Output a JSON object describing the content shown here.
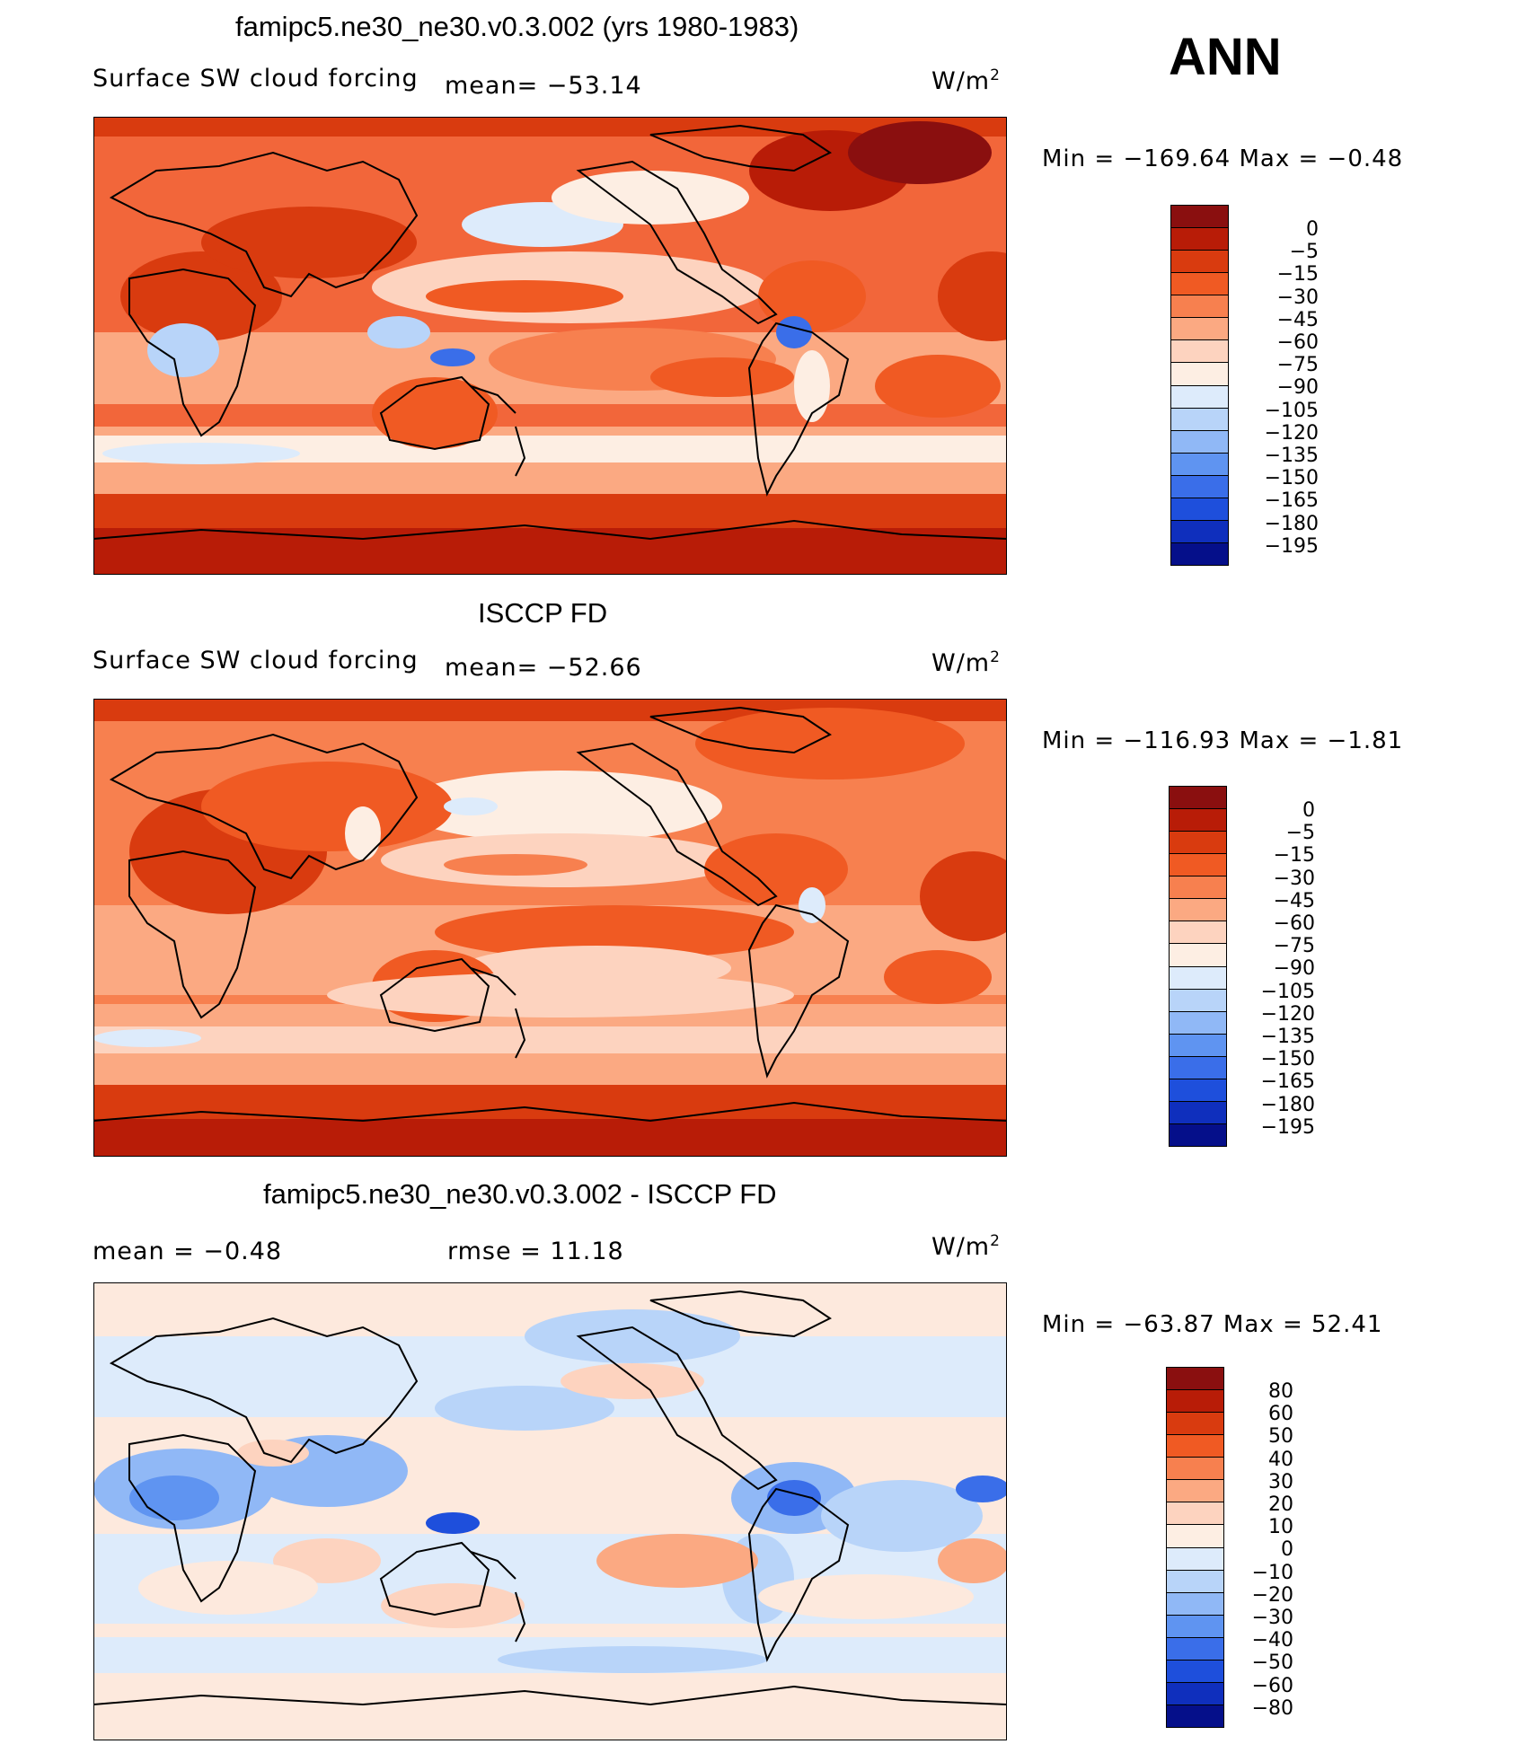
{
  "season": "ANN",
  "panels": [
    {
      "title": "famipc5.ne30_ne30.v0.3.002 (yrs 1980-1983)",
      "left_label": "Surface SW cloud forcing",
      "stat_label": "mean= −53.14",
      "units": "W/m",
      "units_sup": "2",
      "minmax": "Min = −169.64  Max =   −0.48",
      "colorbar_labels": [
        "0",
        "−5",
        "−15",
        "−30",
        "−45",
        "−60",
        "−75",
        "−90",
        "−105",
        "−120",
        "−135",
        "−150",
        "−165",
        "−180",
        "−195"
      ]
    },
    {
      "title": "ISCCP FD",
      "left_label": "Surface SW cloud forcing",
      "stat_label": "mean= −52.66",
      "units": "W/m",
      "units_sup": "2",
      "minmax": "Min = −116.93  Max =   −1.81",
      "colorbar_labels": [
        "0",
        "−5",
        "−15",
        "−30",
        "−45",
        "−60",
        "−75",
        "−90",
        "−105",
        "−120",
        "−135",
        "−150",
        "−165",
        "−180",
        "−195"
      ]
    },
    {
      "title": "famipc5.ne30_ne30.v0.3.002 - ISCCP FD",
      "left_label": "mean =   −0.48",
      "stat_label": "rmse =   11.18",
      "units": "W/m",
      "units_sup": "2",
      "minmax": "Min = −63.87  Max =   52.41",
      "colorbar_labels": [
        "80",
        "60",
        "50",
        "40",
        "30",
        "20",
        "10",
        "0",
        "−10",
        "−20",
        "−30",
        "−40",
        "−50",
        "−60",
        "−80"
      ]
    }
  ],
  "colors": {
    "colorbar_16": [
      "#8a0f0f",
      "#b81c07",
      "#d93b0f",
      "#f05a23",
      "#f7804f",
      "#fba982",
      "#fdd3bf",
      "#fdeee3",
      "#ddebfb",
      "#b8d4f9",
      "#90b8f6",
      "#5f94f1",
      "#3a6ee9",
      "#1e4fdc",
      "#0f2fbd",
      "#050f8a"
    ],
    "bg_panel_1": "#f2663a",
    "bg_panel_2": "#f7804f",
    "bg_panel_3": "#fde9dd"
  }
}
